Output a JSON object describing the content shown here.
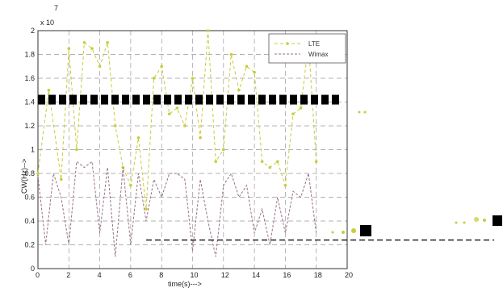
{
  "chart_data": {
    "type": "line",
    "title": "",
    "xlabel": "time(s)--->",
    "ylabel": "CW(Hz)-->",
    "exponent_label": "x 10",
    "exponent_power": "7",
    "xlim": [
      0,
      20
    ],
    "ylim": [
      0,
      2
    ],
    "grid": true,
    "legend_position": "top-right",
    "x_ticks": [
      "0",
      "2",
      "4",
      "6",
      "8",
      "10",
      "12",
      "14",
      "16",
      "18",
      "20"
    ],
    "y_ticks": [
      {
        "value": 0,
        "label": "0"
      },
      {
        "value": 0.2,
        "label": "0.2"
      },
      {
        "value": 0.4,
        "label": "0.4"
      },
      {
        "value": 0.6,
        "label": "0.6"
      },
      {
        "value": 0.8,
        "label": "0.8"
      },
      {
        "value": 1.0,
        "label": "1"
      },
      {
        "value": 1.2,
        "label": "1.2"
      },
      {
        "value": 1.4,
        "label": "1.4"
      },
      {
        "value": 1.6,
        "label": "1.6"
      },
      {
        "value": 1.8,
        "label": "1.8"
      },
      {
        "value": 2.0,
        "label": "2"
      }
    ],
    "series": [
      {
        "name": "LTE",
        "color": "#c8cc3a",
        "dash": "4,3",
        "marker": "circle",
        "points": [
          [
            0,
            0.8
          ],
          [
            0.7,
            1.5
          ],
          [
            1.5,
            0.75
          ],
          [
            2,
            1.85
          ],
          [
            2.5,
            1.0
          ],
          [
            3,
            1.9
          ],
          [
            3.5,
            1.85
          ],
          [
            4,
            1.7
          ],
          [
            4.5,
            1.9
          ],
          [
            5,
            1.2
          ],
          [
            5.5,
            0.85
          ],
          [
            6,
            0.7
          ],
          [
            6.5,
            1.1
          ],
          [
            7,
            0.5
          ],
          [
            7.5,
            1.6
          ],
          [
            8,
            1.7
          ],
          [
            8.5,
            1.3
          ],
          [
            9,
            1.35
          ],
          [
            9.5,
            1.2
          ],
          [
            10,
            1.6
          ],
          [
            10.5,
            1.1
          ],
          [
            11,
            2.0
          ],
          [
            11.5,
            0.9
          ],
          [
            12,
            1.0
          ],
          [
            12.5,
            1.8
          ],
          [
            13,
            1.5
          ],
          [
            13.5,
            1.7
          ],
          [
            14,
            1.65
          ],
          [
            14.5,
            0.9
          ],
          [
            15,
            0.85
          ],
          [
            15.5,
            0.9
          ],
          [
            16,
            0.7
          ],
          [
            16.5,
            1.3
          ],
          [
            17,
            1.35
          ],
          [
            17.5,
            1.9
          ],
          [
            18,
            0.9
          ]
        ]
      },
      {
        "name": "Wimax",
        "color": "#9a6f8a",
        "dash": "3,2",
        "marker": "none",
        "points": [
          [
            0,
            0.78
          ],
          [
            0.5,
            0.2
          ],
          [
            1,
            0.8
          ],
          [
            1.5,
            0.6
          ],
          [
            2,
            0.2
          ],
          [
            2.5,
            0.9
          ],
          [
            3,
            0.85
          ],
          [
            3.5,
            0.9
          ],
          [
            4,
            0.3
          ],
          [
            4.5,
            0.85
          ],
          [
            5,
            0.1
          ],
          [
            5.5,
            0.85
          ],
          [
            6,
            0.2
          ],
          [
            6.5,
            0.8
          ],
          [
            7,
            0.4
          ],
          [
            7.5,
            0.75
          ],
          [
            8,
            0.6
          ],
          [
            8.5,
            0.8
          ],
          [
            9,
            0.8
          ],
          [
            9.5,
            0.75
          ],
          [
            10,
            0.15
          ],
          [
            10.5,
            0.75
          ],
          [
            11,
            0.4
          ],
          [
            11.5,
            0.1
          ],
          [
            12,
            0.7
          ],
          [
            12.5,
            0.8
          ],
          [
            13,
            0.6
          ],
          [
            13.5,
            0.7
          ],
          [
            14,
            0.3
          ],
          [
            14.5,
            0.5
          ],
          [
            15,
            0.2
          ],
          [
            15.5,
            0.6
          ],
          [
            16,
            0.3
          ],
          [
            16.5,
            0.65
          ],
          [
            17,
            0.6
          ],
          [
            17.5,
            0.8
          ],
          [
            18,
            0.3
          ]
        ]
      }
    ],
    "overlay_bars": [
      {
        "y": 1.42,
        "x_from": 0,
        "x_to": 20,
        "color": "#000000"
      }
    ],
    "reference_line": {
      "y": 0.24,
      "x_from": 7,
      "x_to": 20,
      "color": "#111111"
    },
    "legend_entries": [
      "LTE",
      "Wimax"
    ]
  }
}
